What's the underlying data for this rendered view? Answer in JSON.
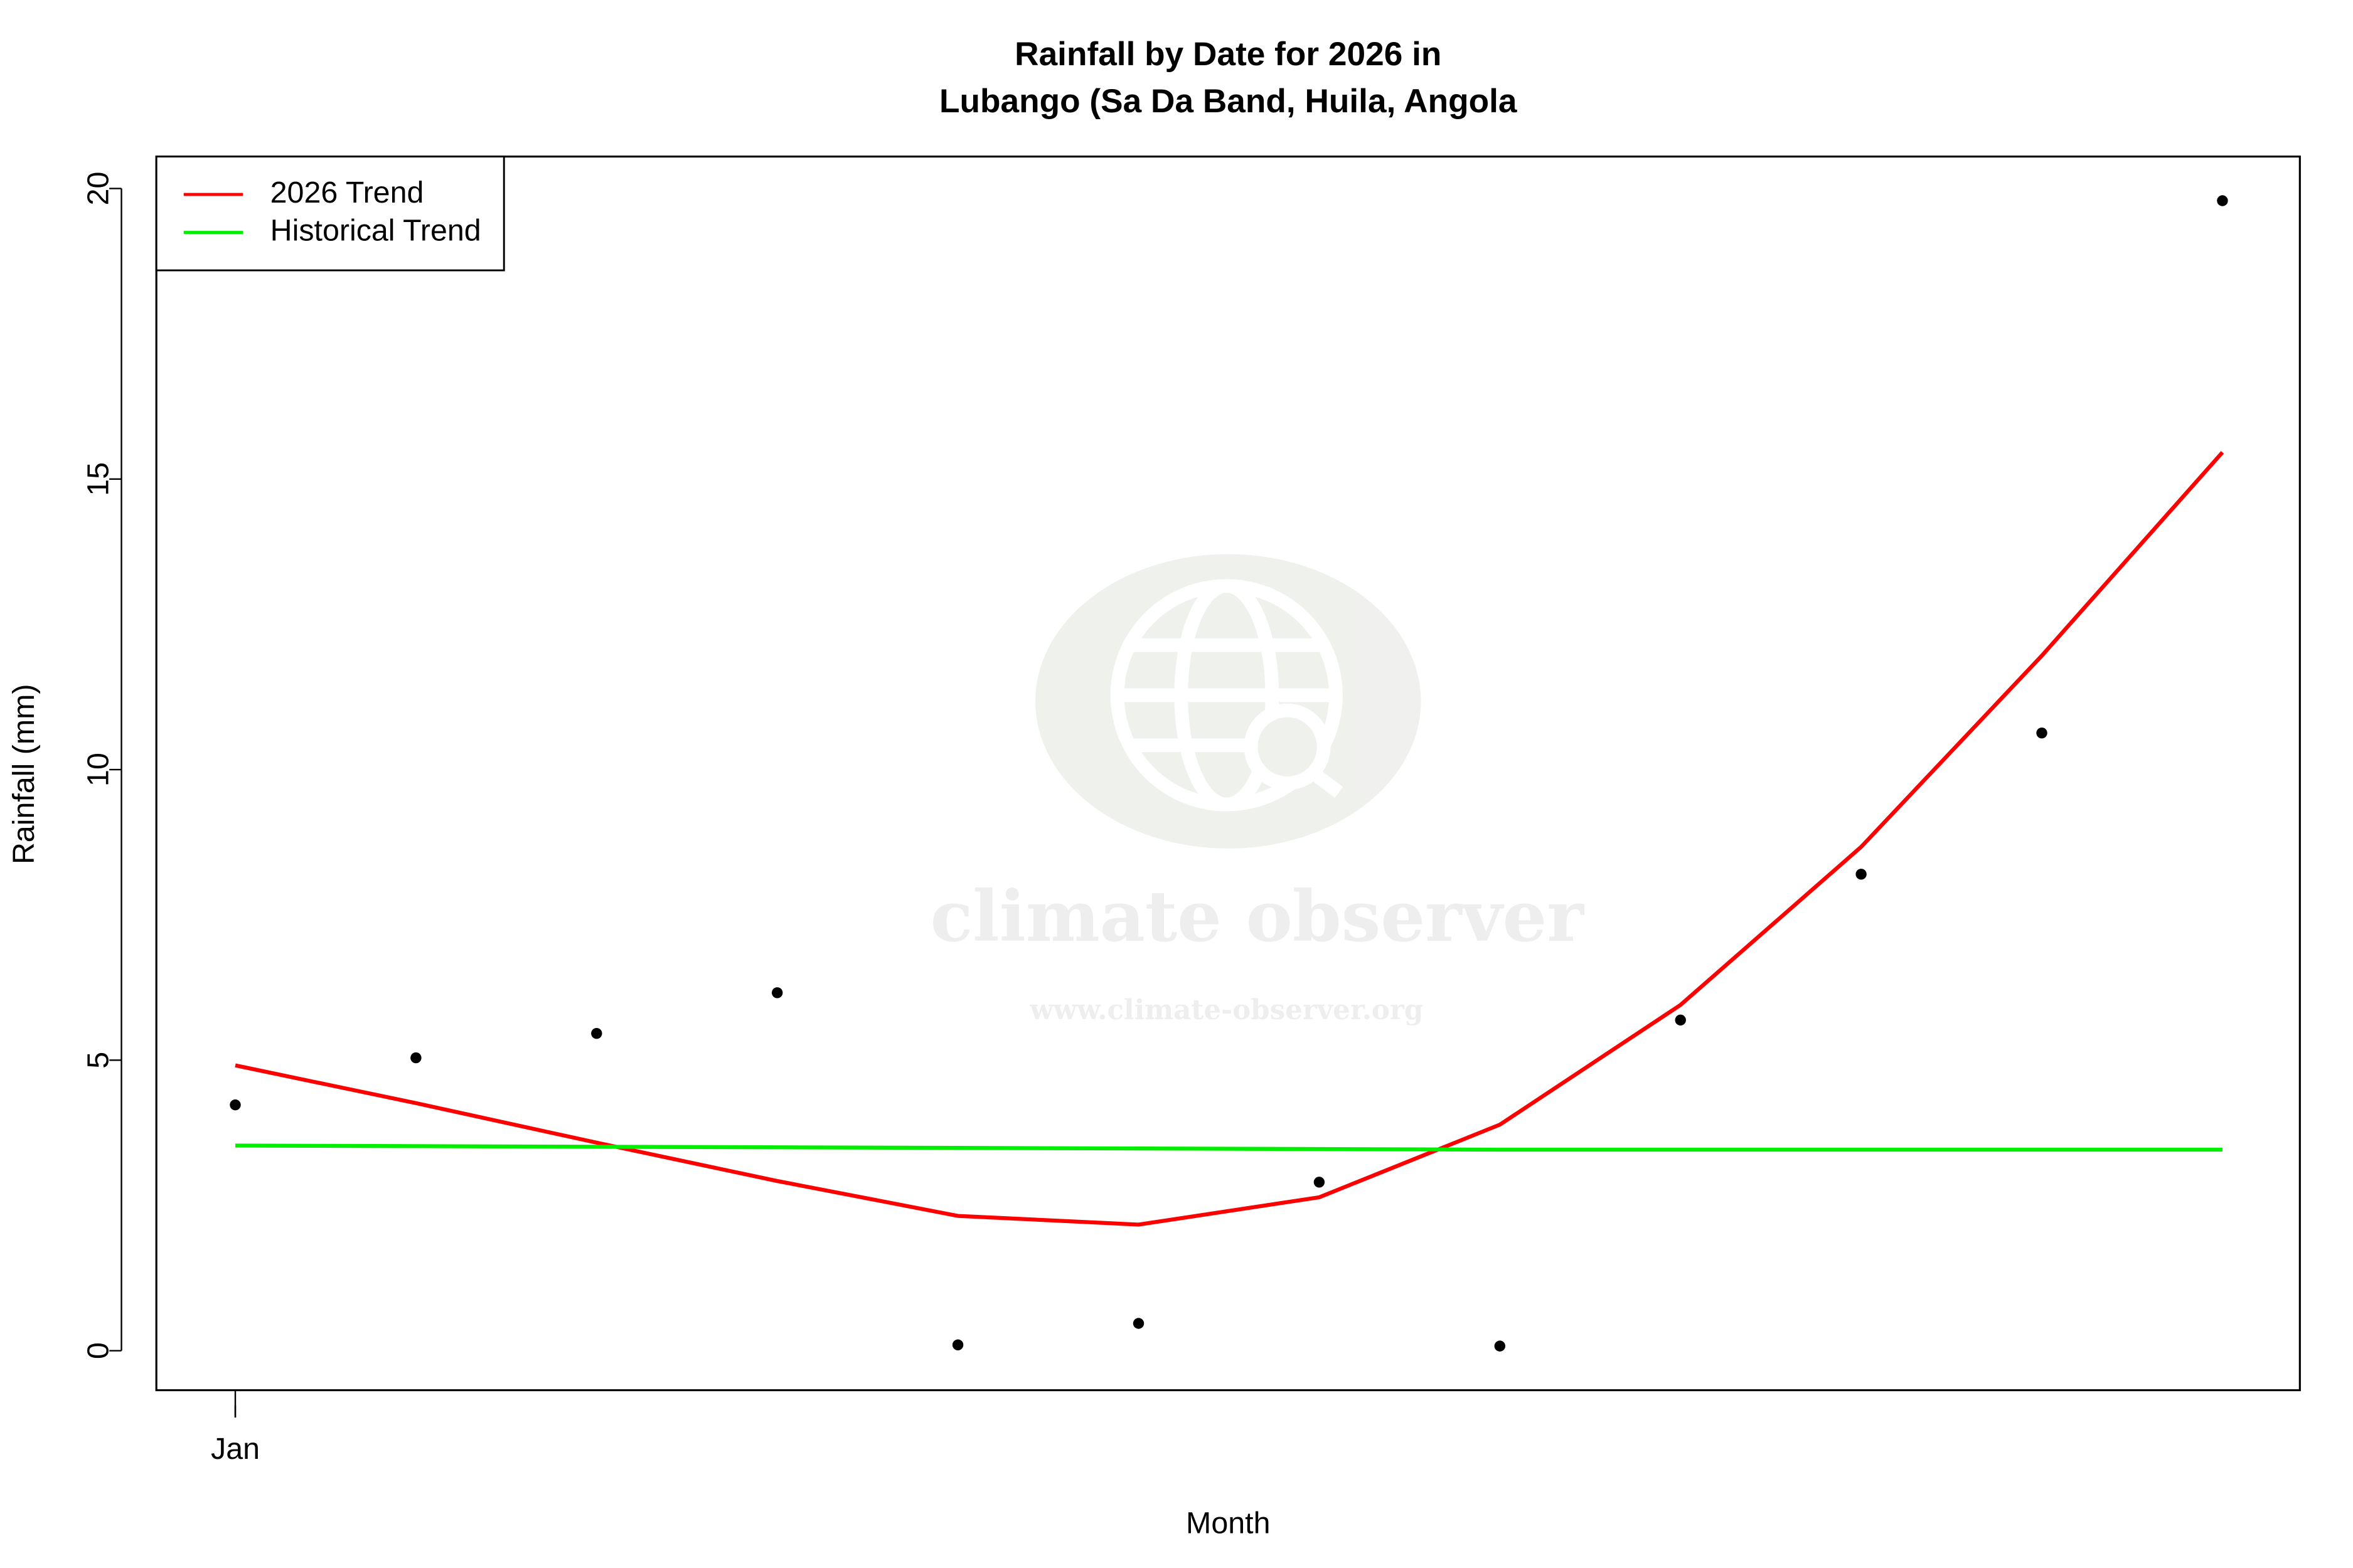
{
  "chart_data": {
    "type": "line",
    "title": [
      "Rainfall by Date for 2026 in",
      "Lubango (Sa Da Band, Huila, Angola"
    ],
    "x_label": "Month",
    "y_label": "Rainfall (mm)",
    "categories": [
      "Jan",
      null,
      null,
      null,
      null,
      null,
      null,
      null,
      null,
      null,
      null,
      null
    ],
    "points": {
      "color": "#000000",
      "values": [
        4.23,
        5.04,
        5.46,
        6.16,
        0.1,
        0.47,
        2.9,
        0.08,
        5.69,
        8.2,
        10.63,
        19.79
      ]
    },
    "series": [
      {
        "name": "2026 Trend",
        "color": "#ff0000",
        "values": [
          4.91,
          4.26,
          3.58,
          2.92,
          2.32,
          2.17,
          2.64,
          3.89,
          5.95,
          8.67,
          11.96,
          15.46
        ]
      },
      {
        "name": "Historical Trend",
        "color": "#00ee00",
        "values": [
          3.53,
          3.52,
          3.51,
          3.5,
          3.49,
          3.48,
          3.47,
          3.46,
          3.46,
          3.46,
          3.46,
          3.46
        ]
      }
    ],
    "ylim": [
      -0.68,
      20.55
    ],
    "yticks": [
      0,
      5,
      10,
      15,
      20
    ],
    "legend": "topleft",
    "watermark": {
      "name": "climate observer",
      "url": "www.climate-observer.org"
    }
  }
}
